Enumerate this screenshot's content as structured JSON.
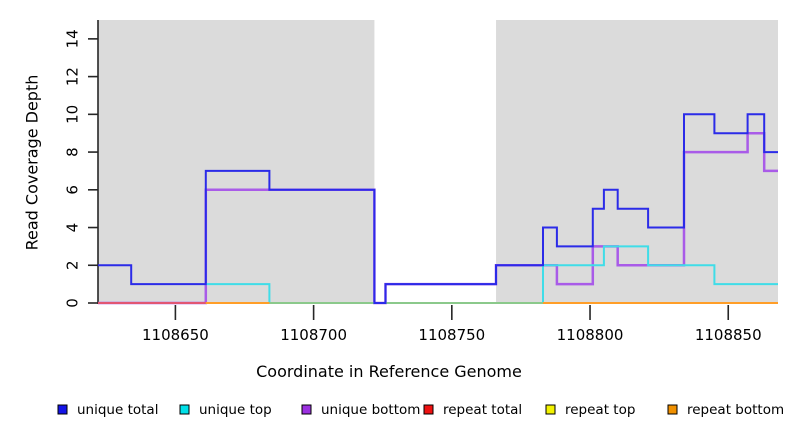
{
  "figure": {
    "x_axis_title": "Coordinate in Reference Genome",
    "y_axis_title": "Read Coverage Depth"
  },
  "chart_data": {
    "type": "line",
    "subtype": "step-coverage-depth",
    "title": "",
    "xlabel": "Coordinate in Reference Genome",
    "ylabel": "Read Coverage Depth",
    "xlim": [
      1108622,
      1108868
    ],
    "ylim": [
      0,
      15
    ],
    "x_ticks": [
      1108650,
      1108700,
      1108750,
      1108800,
      1108850
    ],
    "y_ticks": [
      0,
      2,
      4,
      6,
      8,
      10,
      12,
      14
    ],
    "grid": false,
    "background_color": "#ffffff",
    "shaded_color": "#dbdbdb",
    "shaded_regions": [
      {
        "from": 1108622,
        "to": 1108722
      },
      {
        "from": 1108766,
        "to": 1108868
      }
    ],
    "axis_color": "#262626",
    "text_color": "#000000",
    "legend_position": "bottom",
    "series": [
      {
        "name": "unique bottom",
        "legend_color": "#9b30e0",
        "line_color": "#a95be8",
        "line_width": 2.5,
        "segments": [
          [
            [
              1108622,
              0
            ],
            [
              1108661,
              6
            ],
            [
              1108722,
              0
            ],
            [
              1108726,
              1
            ],
            [
              1108766,
              2
            ],
            [
              1108788,
              1
            ],
            [
              1108801,
              3
            ],
            [
              1108810,
              2
            ],
            [
              1108834,
              8
            ],
            [
              1108857,
              9
            ],
            [
              1108863,
              7
            ],
            [
              1108868,
              7
            ]
          ]
        ]
      },
      {
        "name": "unique top",
        "legend_color": "#00e0e8",
        "line_color": "#3fdde8",
        "line_width": 2,
        "segments": [
          [
            [
              1108661,
              1
            ],
            [
              1108684,
              0
            ],
            [
              1108783,
              2
            ],
            [
              1108805,
              3
            ],
            [
              1108821,
              2
            ],
            [
              1108845,
              1
            ],
            [
              1108868,
              1
            ]
          ]
        ]
      },
      {
        "name": "repeat total",
        "legend_color": "#ee1111",
        "line_color": "#e25673",
        "line_width": 2,
        "segments": [
          [
            [
              1108622,
              0
            ],
            [
              1108661,
              0
            ]
          ]
        ]
      },
      {
        "name": "repeat top",
        "legend_color": "#f2f200",
        "line_color": "#8bc98b",
        "line_width": 2,
        "segments": [
          [
            [
              1108684,
              0
            ],
            [
              1108783,
              0
            ]
          ]
        ]
      },
      {
        "name": "repeat bottom",
        "legend_color": "#f09000",
        "line_color": "#ff9e28",
        "line_width": 2,
        "segments": [
          [
            [
              1108661,
              0
            ],
            [
              1108684,
              0
            ]
          ],
          [
            [
              1108783,
              0
            ],
            [
              1108868,
              0
            ]
          ]
        ]
      },
      {
        "name": "unique total",
        "legend_color": "#1414e8",
        "line_color": "#2b2be8",
        "line_width": 2,
        "segments": [
          [
            [
              1108622,
              2
            ],
            [
              1108634,
              1
            ],
            [
              1108661,
              7
            ],
            [
              1108684,
              6
            ],
            [
              1108722,
              0
            ],
            [
              1108726,
              1
            ],
            [
              1108766,
              2
            ],
            [
              1108783,
              4
            ],
            [
              1108788,
              3
            ],
            [
              1108801,
              5
            ],
            [
              1108805,
              6
            ],
            [
              1108810,
              5
            ],
            [
              1108821,
              4
            ],
            [
              1108834,
              10
            ],
            [
              1108845,
              9
            ],
            [
              1108857,
              10
            ],
            [
              1108863,
              8
            ],
            [
              1108868,
              8
            ]
          ]
        ]
      }
    ],
    "legend_items": [
      {
        "label": "unique total",
        "color": "#1414e8"
      },
      {
        "label": "unique top",
        "color": "#00e0e8"
      },
      {
        "label": "unique bottom",
        "color": "#9b30e0"
      },
      {
        "label": "repeat total",
        "color": "#ee1111"
      },
      {
        "label": "repeat top",
        "color": "#f2f200"
      },
      {
        "label": "repeat bottom",
        "color": "#f09000"
      }
    ]
  }
}
